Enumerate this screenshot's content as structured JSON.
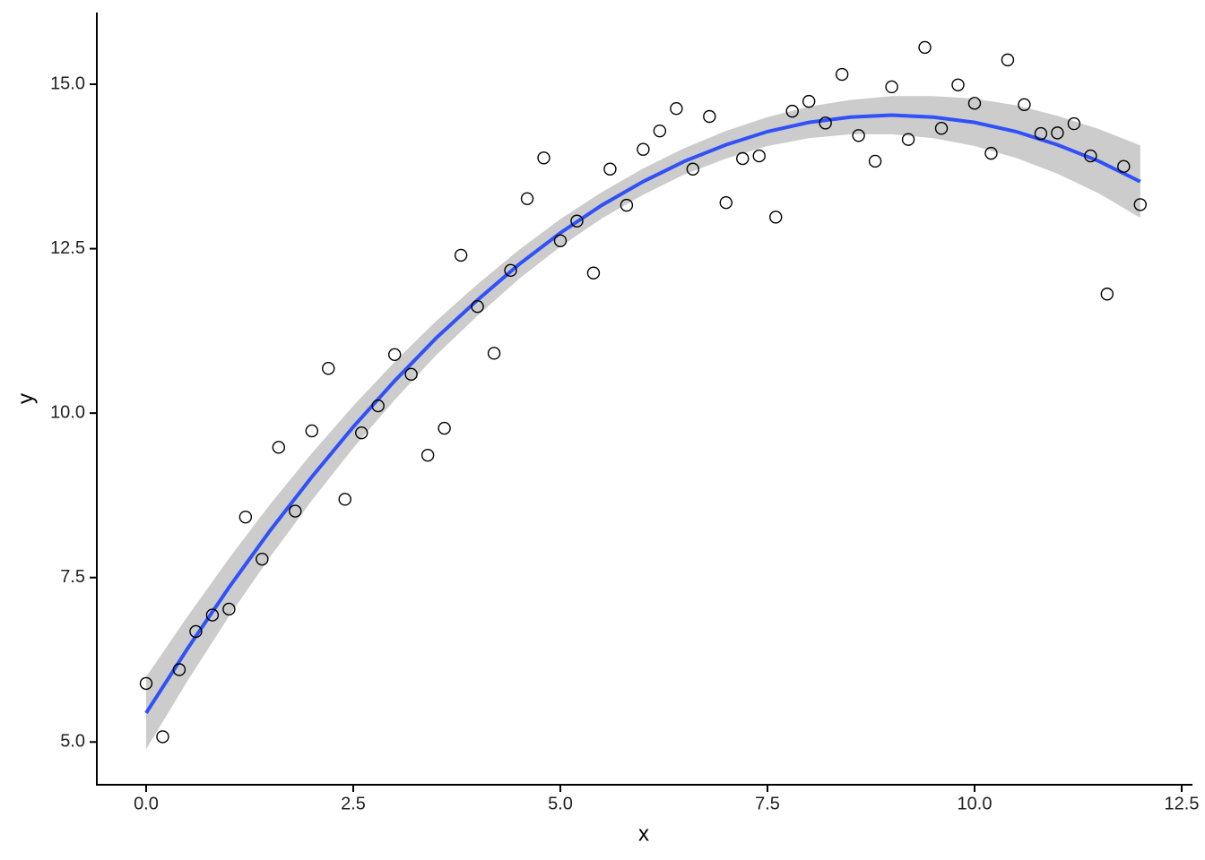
{
  "chart_data": {
    "type": "scatter",
    "x_label": "x",
    "y_label": "y",
    "x": [
      0,
      0.2,
      0.4,
      0.6,
      0.8,
      1,
      1.2,
      1.4,
      1.6,
      1.8,
      2,
      2.2,
      2.4,
      2.6,
      2.8,
      3,
      3.2,
      3.4,
      3.6,
      3.8,
      4,
      4.2,
      4.4,
      4.6,
      4.8,
      5,
      5.2,
      5.4,
      5.6,
      5.8,
      6,
      6.2,
      6.4,
      6.6,
      6.8,
      7,
      7.2,
      7.4,
      7.6,
      7.8,
      8,
      8.2,
      8.4,
      8.6,
      8.8,
      9,
      9.2,
      9.4,
      9.6,
      9.8,
      10,
      10.2,
      10.4,
      10.6,
      10.8,
      11,
      11.2,
      11.4,
      11.6,
      11.8,
      12
    ],
    "values": [
      5.89,
      5.08,
      6.1,
      6.68,
      6.93,
      7.02,
      8.42,
      7.78,
      9.48,
      8.51,
      9.73,
      10.68,
      8.69,
      9.7,
      10.11,
      10.89,
      10.59,
      9.36,
      9.77,
      12.4,
      11.62,
      10.91,
      12.17,
      13.26,
      13.88,
      12.62,
      12.92,
      12.13,
      13.71,
      13.16,
      14.01,
      14.29,
      14.63,
      13.71,
      14.51,
      13.2,
      13.87,
      13.91,
      12.98,
      14.59,
      14.74,
      14.41,
      15.15,
      14.22,
      13.83,
      14.96,
      14.16,
      15.56,
      14.33,
      14.99,
      14.71,
      13.95,
      15.37,
      14.69,
      14.25,
      14.26,
      14.4,
      13.91,
      11.81,
      13.75,
      13.17
    ],
    "fit": {
      "color": "#3050f8",
      "band_color": "#cccccc",
      "x": [
        0,
        0.5,
        1,
        1.5,
        2,
        2.5,
        3,
        3.5,
        4,
        4.5,
        5,
        5.5,
        6,
        6.5,
        7,
        7.5,
        8,
        8.5,
        9,
        9.5,
        10,
        10.5,
        11,
        11.5,
        12
      ],
      "values": [
        5.44,
        6.42,
        7.35,
        8.22,
        9.03,
        9.79,
        10.49,
        11.14,
        11.72,
        12.26,
        12.74,
        13.16,
        13.52,
        13.83,
        14.08,
        14.28,
        14.42,
        14.5,
        14.53,
        14.5,
        14.42,
        14.28,
        14.08,
        13.83,
        13.52
      ],
      "lower": [
        4.89,
        5.93,
        6.91,
        7.82,
        8.67,
        9.47,
        10.2,
        10.88,
        11.48,
        12.04,
        12.53,
        12.96,
        13.32,
        13.63,
        13.87,
        14.06,
        14.18,
        14.24,
        14.24,
        14.18,
        14.06,
        13.88,
        13.64,
        13.34,
        12.97
      ],
      "upper": [
        5.99,
        6.91,
        7.79,
        8.62,
        9.39,
        10.11,
        10.78,
        11.4,
        11.96,
        12.48,
        12.95,
        13.36,
        13.72,
        14.03,
        14.29,
        14.5,
        14.66,
        14.76,
        14.82,
        14.82,
        14.78,
        14.68,
        14.52,
        14.32,
        14.07
      ]
    },
    "xlim": [
      -0.595,
      12.63
    ],
    "ylim": [
      4.35,
      16.09
    ],
    "xticks": [
      {
        "value": 0,
        "label": "0.0"
      },
      2.5,
      {
        "value": 5,
        "label": "5.0"
      },
      7.5,
      {
        "value": 10,
        "label": "10.0"
      },
      12.5
    ],
    "yticks": [
      {
        "value": 5,
        "label": "5.0"
      },
      7.5,
      {
        "value": 10,
        "label": "10.0"
      },
      12.5,
      {
        "value": 15,
        "label": "15.0"
      }
    ]
  }
}
